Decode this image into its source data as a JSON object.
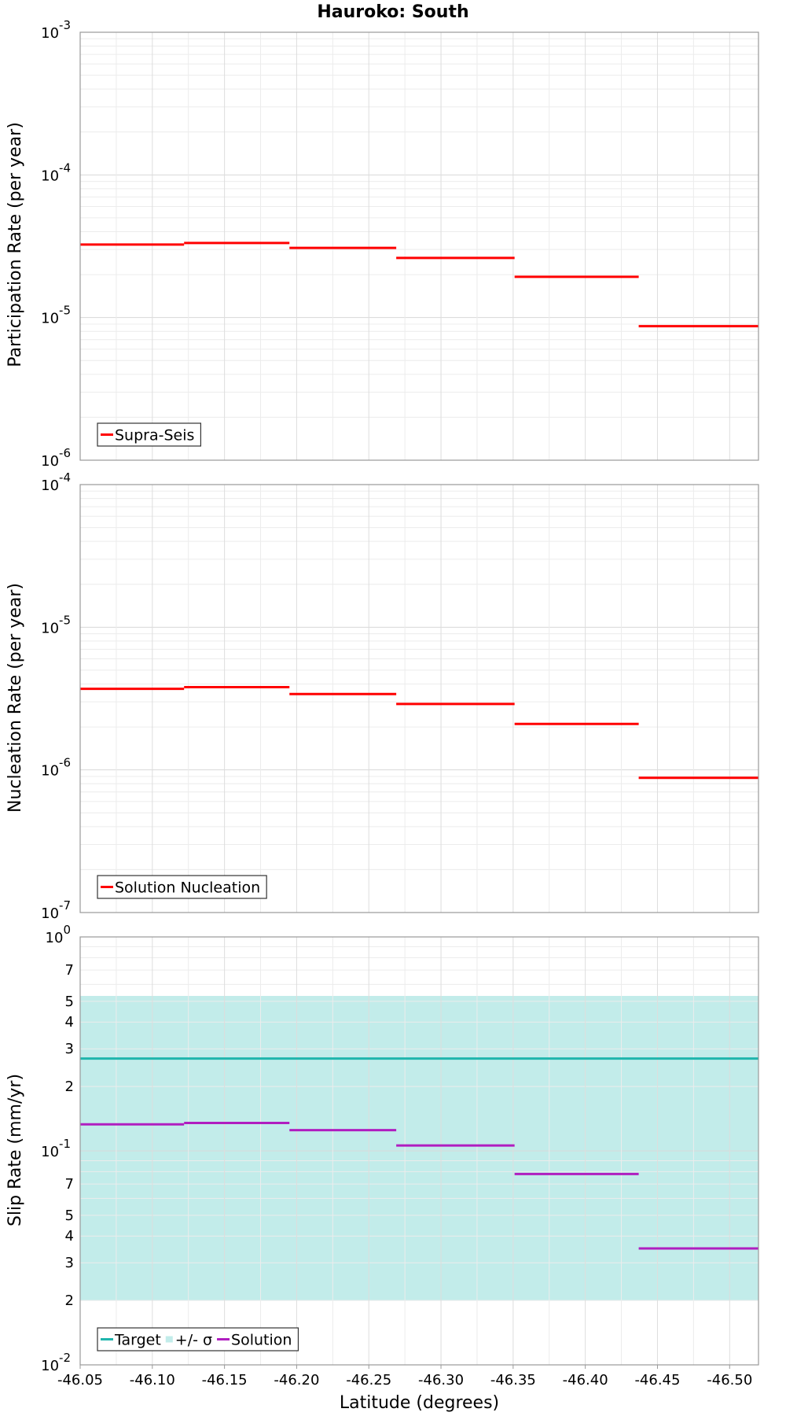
{
  "figure_title": "Hauroko: South",
  "chart_data": [
    {
      "type": "line",
      "title": "Hauroko: South",
      "xlabel": "",
      "ylabel": "Participation Rate (per year)",
      "yscale": "log",
      "ylim": [
        1e-06,
        0.001
      ],
      "ytick_labels": [
        {
          "base": "10",
          "exp": "-3"
        },
        {
          "base": "10",
          "exp": "-4"
        },
        {
          "base": "10",
          "exp": "-5"
        },
        {
          "base": "10",
          "exp": "-6"
        }
      ],
      "xlim": [
        -46.05,
        -46.52
      ],
      "grid": true,
      "legend_position": "bottom-left",
      "series": [
        {
          "name": "Supra-Seis",
          "color": "#ff0000",
          "style": "step",
          "segments": [
            {
              "x0": -46.05,
              "x1": -46.122,
              "y": 3.25e-05
            },
            {
              "x0": -46.122,
              "x1": -46.195,
              "y": 3.33e-05
            },
            {
              "x0": -46.195,
              "x1": -46.269,
              "y": 3.08e-05
            },
            {
              "x0": -46.269,
              "x1": -46.351,
              "y": 2.62e-05
            },
            {
              "x0": -46.351,
              "x1": -46.437,
              "y": 1.93e-05
            },
            {
              "x0": -46.437,
              "x1": -46.52,
              "y": 8.7e-06
            }
          ]
        }
      ]
    },
    {
      "type": "line",
      "xlabel": "",
      "ylabel": "Nucleation Rate (per year)",
      "yscale": "log",
      "ylim": [
        1e-07,
        0.0001
      ],
      "ytick_labels": [
        {
          "base": "10",
          "exp": "-4"
        },
        {
          "base": "10",
          "exp": "-5"
        },
        {
          "base": "10",
          "exp": "-6"
        },
        {
          "base": "10",
          "exp": "-7"
        }
      ],
      "xlim": [
        -46.05,
        -46.52
      ],
      "grid": true,
      "legend_position": "bottom-left",
      "series": [
        {
          "name": "Solution Nucleation",
          "color": "#ff0000",
          "style": "step",
          "segments": [
            {
              "x0": -46.05,
              "x1": -46.122,
              "y": 3.7e-06
            },
            {
              "x0": -46.122,
              "x1": -46.195,
              "y": 3.8e-06
            },
            {
              "x0": -46.195,
              "x1": -46.269,
              "y": 3.4e-06
            },
            {
              "x0": -46.269,
              "x1": -46.351,
              "y": 2.9e-06
            },
            {
              "x0": -46.351,
              "x1": -46.437,
              "y": 2.1e-06
            },
            {
              "x0": -46.437,
              "x1": -46.52,
              "y": 8.8e-07
            }
          ]
        }
      ]
    },
    {
      "type": "line",
      "xlabel": "Latitude (degrees)",
      "ylabel": "Slip Rate (mm/yr)",
      "yscale": "log",
      "ylim": [
        0.01,
        1
      ],
      "ytick_labels": [
        {
          "base": "10",
          "exp": "0"
        },
        {
          "base": "10",
          "exp": "-1"
        },
        {
          "base": "10",
          "exp": "-2"
        }
      ],
      "minor_ticks": [
        {
          "value": 0.7,
          "label": "7"
        },
        {
          "value": 0.5,
          "label": "5"
        },
        {
          "value": 0.4,
          "label": "4"
        },
        {
          "value": 0.3,
          "label": "3"
        },
        {
          "value": 0.2,
          "label": "2"
        },
        {
          "value": 0.07,
          "label": "7"
        },
        {
          "value": 0.05,
          "label": "5"
        },
        {
          "value": 0.04,
          "label": "4"
        },
        {
          "value": 0.03,
          "label": "3"
        },
        {
          "value": 0.02,
          "label": "2"
        }
      ],
      "xlim": [
        -46.05,
        -46.52
      ],
      "xticks": [
        -46.05,
        -46.1,
        -46.15,
        -46.2,
        -46.25,
        -46.3,
        -46.35,
        -46.4,
        -46.45,
        -46.5
      ],
      "xtick_labels": [
        "-46.05",
        "-46.10",
        "-46.15",
        "-46.20",
        "-46.25",
        "-46.30",
        "-46.35",
        "-46.40",
        "-46.45",
        "-46.50"
      ],
      "grid": true,
      "legend_position": "bottom-left",
      "band": {
        "name": "+/- σ",
        "color": "#c2ecea",
        "y_low": 0.02,
        "y_high": 0.53
      },
      "series": [
        {
          "name": "Target",
          "color": "#1fb5ad",
          "style": "step",
          "segments": [
            {
              "x0": -46.05,
              "x1": -46.52,
              "y": 0.27
            }
          ]
        },
        {
          "name": "Solution",
          "color": "#b01ec0",
          "style": "step",
          "segments": [
            {
              "x0": -46.05,
              "x1": -46.122,
              "y": 0.133
            },
            {
              "x0": -46.122,
              "x1": -46.195,
              "y": 0.135
            },
            {
              "x0": -46.195,
              "x1": -46.269,
              "y": 0.125
            },
            {
              "x0": -46.269,
              "x1": -46.351,
              "y": 0.106
            },
            {
              "x0": -46.351,
              "x1": -46.437,
              "y": 0.078
            },
            {
              "x0": -46.437,
              "x1": -46.52,
              "y": 0.035
            }
          ]
        }
      ],
      "legend_items": [
        "Target",
        "+/- σ",
        "Solution"
      ]
    }
  ]
}
